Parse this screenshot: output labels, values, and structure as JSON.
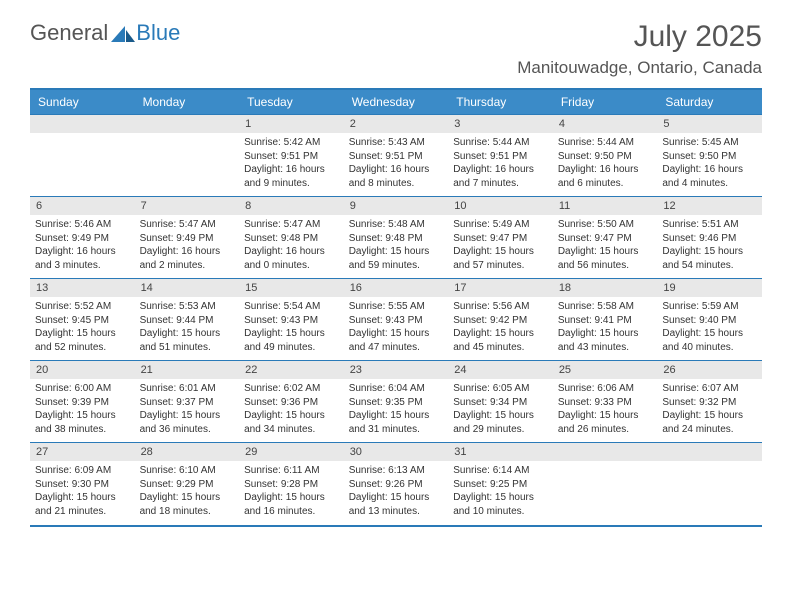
{
  "logo": {
    "text_gray": "General",
    "text_blue": "Blue"
  },
  "title": "July 2025",
  "location": "Manitouwadge, Ontario, Canada",
  "colors": {
    "header_bg": "#3b8bc8",
    "header_text": "#ffffff",
    "border": "#2a7ab8",
    "daynum_bg": "#e8e8e8",
    "text": "#333333",
    "title": "#555555"
  },
  "day_headers": [
    "Sunday",
    "Monday",
    "Tuesday",
    "Wednesday",
    "Thursday",
    "Friday",
    "Saturday"
  ],
  "weeks": [
    [
      null,
      null,
      {
        "n": "1",
        "sr": "5:42 AM",
        "ss": "9:51 PM",
        "dl": "16 hours and 9 minutes."
      },
      {
        "n": "2",
        "sr": "5:43 AM",
        "ss": "9:51 PM",
        "dl": "16 hours and 8 minutes."
      },
      {
        "n": "3",
        "sr": "5:44 AM",
        "ss": "9:51 PM",
        "dl": "16 hours and 7 minutes."
      },
      {
        "n": "4",
        "sr": "5:44 AM",
        "ss": "9:50 PM",
        "dl": "16 hours and 6 minutes."
      },
      {
        "n": "5",
        "sr": "5:45 AM",
        "ss": "9:50 PM",
        "dl": "16 hours and 4 minutes."
      }
    ],
    [
      {
        "n": "6",
        "sr": "5:46 AM",
        "ss": "9:49 PM",
        "dl": "16 hours and 3 minutes."
      },
      {
        "n": "7",
        "sr": "5:47 AM",
        "ss": "9:49 PM",
        "dl": "16 hours and 2 minutes."
      },
      {
        "n": "8",
        "sr": "5:47 AM",
        "ss": "9:48 PM",
        "dl": "16 hours and 0 minutes."
      },
      {
        "n": "9",
        "sr": "5:48 AM",
        "ss": "9:48 PM",
        "dl": "15 hours and 59 minutes."
      },
      {
        "n": "10",
        "sr": "5:49 AM",
        "ss": "9:47 PM",
        "dl": "15 hours and 57 minutes."
      },
      {
        "n": "11",
        "sr": "5:50 AM",
        "ss": "9:47 PM",
        "dl": "15 hours and 56 minutes."
      },
      {
        "n": "12",
        "sr": "5:51 AM",
        "ss": "9:46 PM",
        "dl": "15 hours and 54 minutes."
      }
    ],
    [
      {
        "n": "13",
        "sr": "5:52 AM",
        "ss": "9:45 PM",
        "dl": "15 hours and 52 minutes."
      },
      {
        "n": "14",
        "sr": "5:53 AM",
        "ss": "9:44 PM",
        "dl": "15 hours and 51 minutes."
      },
      {
        "n": "15",
        "sr": "5:54 AM",
        "ss": "9:43 PM",
        "dl": "15 hours and 49 minutes."
      },
      {
        "n": "16",
        "sr": "5:55 AM",
        "ss": "9:43 PM",
        "dl": "15 hours and 47 minutes."
      },
      {
        "n": "17",
        "sr": "5:56 AM",
        "ss": "9:42 PM",
        "dl": "15 hours and 45 minutes."
      },
      {
        "n": "18",
        "sr": "5:58 AM",
        "ss": "9:41 PM",
        "dl": "15 hours and 43 minutes."
      },
      {
        "n": "19",
        "sr": "5:59 AM",
        "ss": "9:40 PM",
        "dl": "15 hours and 40 minutes."
      }
    ],
    [
      {
        "n": "20",
        "sr": "6:00 AM",
        "ss": "9:39 PM",
        "dl": "15 hours and 38 minutes."
      },
      {
        "n": "21",
        "sr": "6:01 AM",
        "ss": "9:37 PM",
        "dl": "15 hours and 36 minutes."
      },
      {
        "n": "22",
        "sr": "6:02 AM",
        "ss": "9:36 PM",
        "dl": "15 hours and 34 minutes."
      },
      {
        "n": "23",
        "sr": "6:04 AM",
        "ss": "9:35 PM",
        "dl": "15 hours and 31 minutes."
      },
      {
        "n": "24",
        "sr": "6:05 AM",
        "ss": "9:34 PM",
        "dl": "15 hours and 29 minutes."
      },
      {
        "n": "25",
        "sr": "6:06 AM",
        "ss": "9:33 PM",
        "dl": "15 hours and 26 minutes."
      },
      {
        "n": "26",
        "sr": "6:07 AM",
        "ss": "9:32 PM",
        "dl": "15 hours and 24 minutes."
      }
    ],
    [
      {
        "n": "27",
        "sr": "6:09 AM",
        "ss": "9:30 PM",
        "dl": "15 hours and 21 minutes."
      },
      {
        "n": "28",
        "sr": "6:10 AM",
        "ss": "9:29 PM",
        "dl": "15 hours and 18 minutes."
      },
      {
        "n": "29",
        "sr": "6:11 AM",
        "ss": "9:28 PM",
        "dl": "15 hours and 16 minutes."
      },
      {
        "n": "30",
        "sr": "6:13 AM",
        "ss": "9:26 PM",
        "dl": "15 hours and 13 minutes."
      },
      {
        "n": "31",
        "sr": "6:14 AM",
        "ss": "9:25 PM",
        "dl": "15 hours and 10 minutes."
      },
      null,
      null
    ]
  ],
  "labels": {
    "sunrise": "Sunrise:",
    "sunset": "Sunset:",
    "daylight": "Daylight:"
  }
}
